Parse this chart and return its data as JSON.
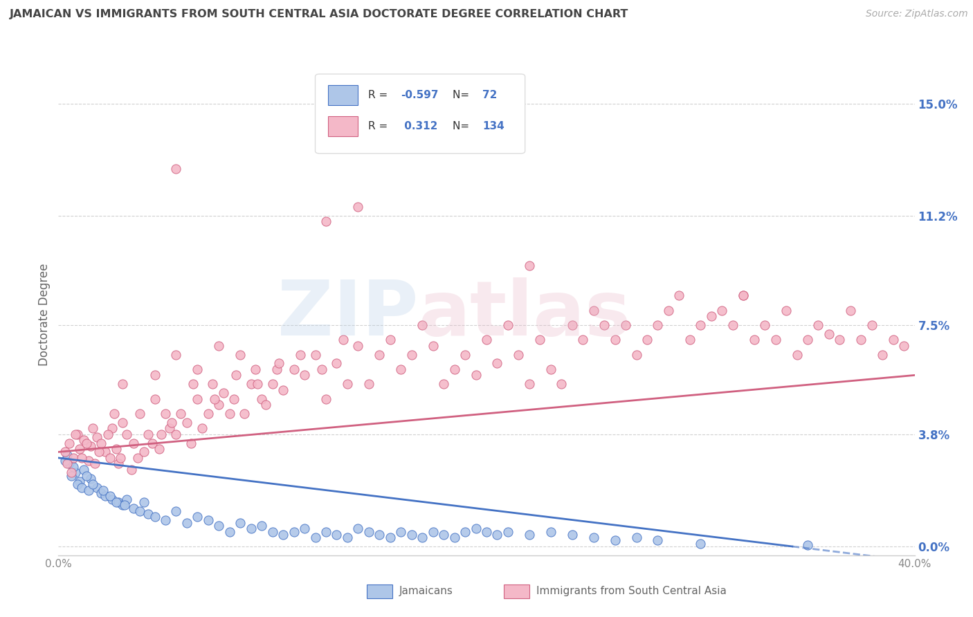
{
  "title": "JAMAICAN VS IMMIGRANTS FROM SOUTH CENTRAL ASIA DOCTORATE DEGREE CORRELATION CHART",
  "source": "Source: ZipAtlas.com",
  "ylabel": "Doctorate Degree",
  "ytick_values": [
    0.0,
    3.8,
    7.5,
    11.2,
    15.0
  ],
  "xrange": [
    0.0,
    40.0
  ],
  "yrange": [
    -0.3,
    16.0
  ],
  "blue_color": "#aec6e8",
  "pink_color": "#f4b8c8",
  "blue_line_color": "#4472c4",
  "pink_line_color": "#d06080",
  "blue_scatter": [
    [
      0.5,
      2.8
    ],
    [
      0.8,
      2.5
    ],
    [
      1.0,
      2.2
    ],
    [
      1.2,
      2.6
    ],
    [
      1.5,
      2.3
    ],
    [
      0.3,
      2.9
    ],
    [
      0.6,
      2.4
    ],
    [
      0.9,
      2.1
    ],
    [
      1.1,
      2.0
    ],
    [
      1.4,
      1.9
    ],
    [
      1.8,
      2.0
    ],
    [
      2.0,
      1.8
    ],
    [
      2.2,
      1.7
    ],
    [
      2.5,
      1.6
    ],
    [
      2.8,
      1.5
    ],
    [
      3.0,
      1.4
    ],
    [
      3.2,
      1.6
    ],
    [
      3.5,
      1.3
    ],
    [
      3.8,
      1.2
    ],
    [
      4.0,
      1.5
    ],
    [
      4.2,
      1.1
    ],
    [
      4.5,
      1.0
    ],
    [
      5.0,
      0.9
    ],
    [
      5.5,
      1.2
    ],
    [
      6.0,
      0.8
    ],
    [
      6.5,
      1.0
    ],
    [
      7.0,
      0.9
    ],
    [
      7.5,
      0.7
    ],
    [
      8.0,
      0.5
    ],
    [
      8.5,
      0.8
    ],
    [
      9.0,
      0.6
    ],
    [
      9.5,
      0.7
    ],
    [
      10.0,
      0.5
    ],
    [
      10.5,
      0.4
    ],
    [
      11.0,
      0.5
    ],
    [
      11.5,
      0.6
    ],
    [
      12.0,
      0.3
    ],
    [
      12.5,
      0.5
    ],
    [
      13.0,
      0.4
    ],
    [
      13.5,
      0.3
    ],
    [
      14.0,
      0.6
    ],
    [
      14.5,
      0.5
    ],
    [
      15.0,
      0.4
    ],
    [
      15.5,
      0.3
    ],
    [
      16.0,
      0.5
    ],
    [
      16.5,
      0.4
    ],
    [
      17.0,
      0.3
    ],
    [
      17.5,
      0.5
    ],
    [
      18.0,
      0.4
    ],
    [
      18.5,
      0.3
    ],
    [
      19.0,
      0.5
    ],
    [
      19.5,
      0.6
    ],
    [
      20.0,
      0.5
    ],
    [
      20.5,
      0.4
    ],
    [
      21.0,
      0.5
    ],
    [
      22.0,
      0.4
    ],
    [
      23.0,
      0.5
    ],
    [
      24.0,
      0.4
    ],
    [
      25.0,
      0.3
    ],
    [
      26.0,
      0.2
    ],
    [
      27.0,
      0.3
    ],
    [
      28.0,
      0.2
    ],
    [
      30.0,
      0.1
    ],
    [
      35.0,
      0.05
    ],
    [
      0.4,
      3.1
    ],
    [
      0.7,
      2.7
    ],
    [
      1.3,
      2.4
    ],
    [
      1.6,
      2.1
    ],
    [
      2.1,
      1.9
    ],
    [
      2.4,
      1.7
    ],
    [
      2.7,
      1.5
    ],
    [
      3.1,
      1.4
    ]
  ],
  "pink_scatter": [
    [
      0.3,
      3.2
    ],
    [
      0.5,
      3.5
    ],
    [
      0.7,
      3.0
    ],
    [
      0.9,
      3.8
    ],
    [
      1.0,
      3.3
    ],
    [
      1.2,
      3.6
    ],
    [
      1.4,
      2.9
    ],
    [
      1.5,
      3.4
    ],
    [
      1.7,
      2.8
    ],
    [
      1.8,
      3.7
    ],
    [
      2.0,
      3.5
    ],
    [
      2.2,
      3.2
    ],
    [
      2.4,
      3.0
    ],
    [
      2.5,
      4.0
    ],
    [
      2.7,
      3.3
    ],
    [
      2.8,
      2.8
    ],
    [
      3.0,
      4.2
    ],
    [
      3.2,
      3.8
    ],
    [
      3.4,
      2.6
    ],
    [
      3.5,
      3.5
    ],
    [
      3.7,
      3.0
    ],
    [
      3.8,
      4.5
    ],
    [
      4.0,
      3.2
    ],
    [
      4.2,
      3.8
    ],
    [
      4.4,
      3.5
    ],
    [
      4.5,
      5.0
    ],
    [
      4.7,
      3.3
    ],
    [
      5.0,
      4.5
    ],
    [
      5.2,
      4.0
    ],
    [
      5.5,
      3.8
    ],
    [
      5.7,
      4.5
    ],
    [
      6.0,
      4.2
    ],
    [
      6.2,
      3.5
    ],
    [
      6.5,
      5.0
    ],
    [
      6.7,
      4.0
    ],
    [
      7.0,
      4.5
    ],
    [
      7.2,
      5.5
    ],
    [
      7.5,
      4.8
    ],
    [
      7.7,
      5.2
    ],
    [
      8.0,
      4.5
    ],
    [
      8.2,
      5.0
    ],
    [
      8.5,
      6.5
    ],
    [
      8.7,
      4.5
    ],
    [
      9.0,
      5.5
    ],
    [
      9.2,
      6.0
    ],
    [
      9.5,
      5.0
    ],
    [
      9.7,
      4.8
    ],
    [
      10.0,
      5.5
    ],
    [
      10.2,
      6.0
    ],
    [
      10.5,
      5.3
    ],
    [
      11.0,
      6.0
    ],
    [
      11.5,
      5.8
    ],
    [
      12.0,
      6.5
    ],
    [
      12.5,
      5.0
    ],
    [
      13.0,
      6.2
    ],
    [
      13.5,
      5.5
    ],
    [
      14.0,
      6.8
    ],
    [
      14.5,
      5.5
    ],
    [
      15.0,
      6.5
    ],
    [
      15.5,
      7.0
    ],
    [
      16.0,
      6.0
    ],
    [
      16.5,
      6.5
    ],
    [
      17.0,
      7.5
    ],
    [
      17.5,
      6.8
    ],
    [
      18.0,
      5.5
    ],
    [
      18.5,
      6.0
    ],
    [
      19.0,
      6.5
    ],
    [
      19.5,
      5.8
    ],
    [
      20.0,
      7.0
    ],
    [
      20.5,
      6.2
    ],
    [
      21.0,
      7.5
    ],
    [
      21.5,
      6.5
    ],
    [
      22.0,
      5.5
    ],
    [
      22.5,
      7.0
    ],
    [
      23.0,
      6.0
    ],
    [
      23.5,
      5.5
    ],
    [
      24.0,
      7.5
    ],
    [
      24.5,
      7.0
    ],
    [
      25.0,
      8.0
    ],
    [
      25.5,
      7.5
    ],
    [
      26.0,
      7.0
    ],
    [
      26.5,
      7.5
    ],
    [
      27.0,
      6.5
    ],
    [
      27.5,
      7.0
    ],
    [
      28.0,
      7.5
    ],
    [
      28.5,
      8.0
    ],
    [
      29.0,
      8.5
    ],
    [
      29.5,
      7.0
    ],
    [
      30.0,
      7.5
    ],
    [
      30.5,
      7.8
    ],
    [
      31.0,
      8.0
    ],
    [
      31.5,
      7.5
    ],
    [
      32.0,
      8.5
    ],
    [
      32.5,
      7.0
    ],
    [
      33.0,
      7.5
    ],
    [
      33.5,
      7.0
    ],
    [
      34.0,
      8.0
    ],
    [
      34.5,
      6.5
    ],
    [
      35.0,
      7.0
    ],
    [
      35.5,
      7.5
    ],
    [
      36.0,
      7.2
    ],
    [
      36.5,
      7.0
    ],
    [
      37.0,
      8.0
    ],
    [
      37.5,
      7.0
    ],
    [
      38.0,
      7.5
    ],
    [
      38.5,
      6.5
    ],
    [
      39.0,
      7.0
    ],
    [
      39.5,
      6.8
    ],
    [
      5.5,
      12.8
    ],
    [
      14.0,
      11.5
    ],
    [
      12.5,
      11.0
    ],
    [
      22.0,
      9.5
    ],
    [
      32.0,
      8.5
    ],
    [
      3.0,
      5.5
    ],
    [
      4.5,
      5.8
    ],
    [
      5.5,
      6.5
    ],
    [
      6.5,
      6.0
    ],
    [
      7.5,
      6.8
    ],
    [
      0.4,
      2.8
    ],
    [
      0.6,
      2.5
    ],
    [
      0.8,
      3.8
    ],
    [
      1.1,
      3.0
    ],
    [
      1.3,
      3.5
    ],
    [
      1.6,
      4.0
    ],
    [
      1.9,
      3.2
    ],
    [
      2.3,
      3.8
    ],
    [
      2.6,
      4.5
    ],
    [
      2.9,
      3.0
    ],
    [
      4.8,
      3.8
    ],
    [
      5.3,
      4.2
    ],
    [
      6.3,
      5.5
    ],
    [
      7.3,
      5.0
    ],
    [
      8.3,
      5.8
    ],
    [
      9.3,
      5.5
    ],
    [
      10.3,
      6.2
    ],
    [
      11.3,
      6.5
    ],
    [
      12.3,
      6.0
    ],
    [
      13.3,
      7.0
    ]
  ],
  "blue_trend": {
    "x_start": 0.0,
    "y_start": 3.0,
    "x_end": 40.0,
    "y_end": -0.5
  },
  "pink_trend": {
    "x_start": 0.0,
    "y_start": 3.2,
    "x_end": 40.0,
    "y_end": 5.8
  },
  "background_color": "#ffffff",
  "grid_color": "#cccccc",
  "title_color": "#444444",
  "axis_label_color": "#666666",
  "ytick_color": "#4472c4"
}
